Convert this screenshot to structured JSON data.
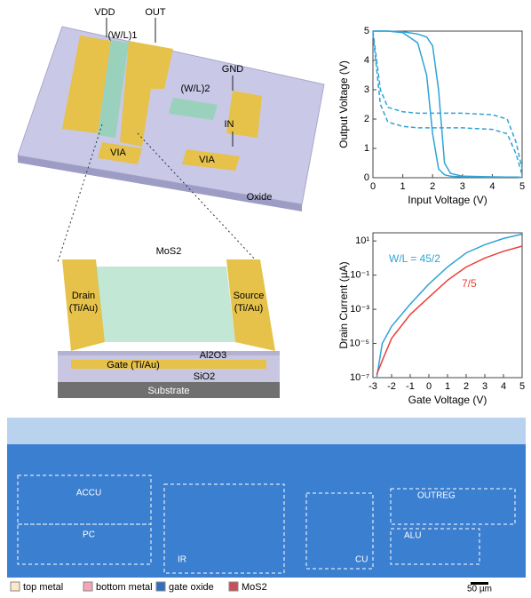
{
  "schematic": {
    "vdd": "VDD",
    "out": "OUT",
    "wl1": "(W/L)1",
    "wl2": "(W/L)2",
    "gnd": "GND",
    "in": "IN",
    "via1": "VIA",
    "via2": "VIA",
    "oxide": "Oxide"
  },
  "device": {
    "mos2": "MoS2",
    "drain": [
      "Drain",
      "(Ti/Au)"
    ],
    "source": [
      "Source",
      "(Ti/Au)"
    ],
    "al2o3": "Al2O3",
    "gate": "Gate (Ti/Au)",
    "sio2": "SiO2",
    "substrate": "Substrate"
  },
  "micrograph": {
    "blocks": [
      "ACCU",
      "PC",
      "IR",
      "CU",
      "OUTREG",
      "ALU"
    ],
    "legend": [
      {
        "label": "top metal",
        "color": "#fde9c8"
      },
      {
        "label": "bottom metal",
        "color": "#f3a6b8"
      },
      {
        "label": "gate oxide",
        "color": "#2f6fc0"
      },
      {
        "label": "MoS2",
        "color": "#c9505a"
      }
    ],
    "scale": "50 µm"
  },
  "chart_data": [
    {
      "type": "line",
      "xlabel": "Input Voltage (V)",
      "ylabel": "Output Voltage (V)",
      "x": [
        0,
        0.25,
        0.5,
        1,
        1.5,
        1.8,
        2,
        2.2,
        2.4,
        2.6,
        3,
        4,
        4.5,
        4.8,
        5
      ],
      "series": [
        {
          "color": "#2fa3d6",
          "dashed": false,
          "values": [
            5,
            5,
            5,
            4.95,
            4.6,
            3.5,
            1.5,
            0.3,
            0.1,
            0.05,
            0.03,
            0.02,
            0.02,
            0.02,
            0.01
          ]
        },
        {
          "color": "#2fa3d6",
          "dashed": false,
          "values": [
            5,
            5,
            5,
            4.98,
            4.9,
            4.8,
            4.5,
            3,
            0.5,
            0.15,
            0.05,
            0.03,
            0.02,
            0.02,
            0.01
          ]
        },
        {
          "color": "#2fa3d6",
          "dashed": true,
          "values": [
            5,
            3,
            2.4,
            2.25,
            2.2,
            2.2,
            2.2,
            2.2,
            2.2,
            2.2,
            2.2,
            2.15,
            2.0,
            1.2,
            0.3
          ]
        },
        {
          "color": "#2fa3d6",
          "dashed": true,
          "values": [
            4.9,
            2.5,
            1.9,
            1.75,
            1.7,
            1.7,
            1.7,
            1.7,
            1.7,
            1.7,
            1.7,
            1.65,
            1.5,
            0.8,
            0.1
          ]
        }
      ],
      "xlim": [
        0,
        5
      ],
      "ylim": [
        0,
        5
      ],
      "xticks": [
        0,
        1,
        2,
        3,
        4,
        5
      ],
      "yticks": [
        0,
        1,
        2,
        3,
        4,
        5
      ]
    },
    {
      "type": "line",
      "xlabel": "Gate Voltage (V)",
      "ylabel": "Drain Current (µA)",
      "log_y": true,
      "x": [
        -2.8,
        -2.5,
        -2,
        -1,
        0,
        1,
        2,
        3,
        4,
        5
      ],
      "series": [
        {
          "name": "W/L = 45/2",
          "color": "#2fa3d6",
          "dashed": false,
          "values": [
            1e-07,
            1e-05,
            0.0001,
            0.002,
            0.03,
            0.3,
            2,
            6,
            14,
            25
          ]
        },
        {
          "name": "7/5",
          "color": "#e8413a",
          "dashed": false,
          "values": [
            1.5e-07,
            1e-06,
            2e-05,
            0.0005,
            0.005,
            0.05,
            0.3,
            1,
            2.5,
            5
          ]
        }
      ],
      "xlim": [
        -3,
        5
      ],
      "ylim": [
        1e-07,
        30
      ],
      "xticks": [
        -3,
        -2,
        -1,
        0,
        1,
        2,
        3,
        4,
        5
      ],
      "yticks": [
        {
          "value": 10,
          "label": "10¹"
        },
        {
          "value": 0.1,
          "label": "10⁻¹"
        },
        {
          "value": 0.001,
          "label": "10⁻³"
        },
        {
          "value": 1e-05,
          "label": "10⁻⁵"
        },
        {
          "value": 1e-07,
          "label": "10⁻⁷"
        }
      ]
    }
  ]
}
